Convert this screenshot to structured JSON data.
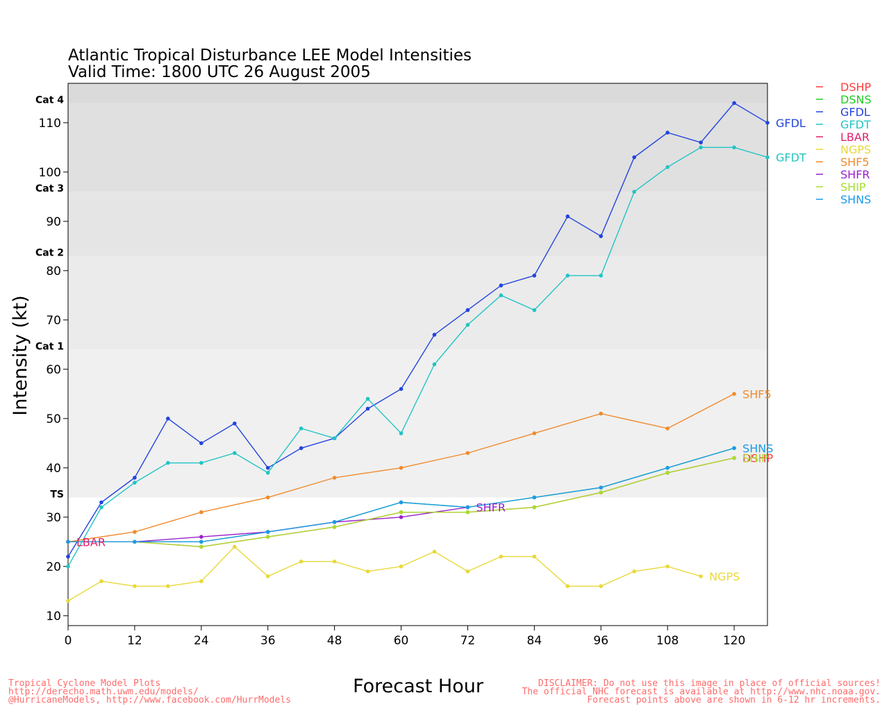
{
  "chart_data": {
    "type": "line",
    "title": "Atlantic Tropical Disturbance LEE Model Intensities",
    "subtitle": "Valid Time: 1800 UTC 26 August 2005",
    "xlabel": "Forecast Hour",
    "ylabel": "Intensity (kt)",
    "xlim": [
      0,
      126
    ],
    "ylim": [
      8,
      118
    ],
    "xticks": [
      0,
      12,
      24,
      36,
      48,
      60,
      72,
      84,
      96,
      108,
      120
    ],
    "yticks": [
      10,
      20,
      30,
      40,
      50,
      60,
      70,
      80,
      90,
      100,
      110
    ],
    "grid": false,
    "legend_position": "right",
    "bands": [
      {
        "label": "TS",
        "from": 34,
        "to": 64,
        "color": "#f0f0f0"
      },
      {
        "label": "Cat 1",
        "from": 64,
        "to": 83,
        "color": "#ebebeb"
      },
      {
        "label": "Cat 2",
        "from": 83,
        "to": 96,
        "color": "#e5e5e5"
      },
      {
        "label": "Cat 3",
        "from": 96,
        "to": 114,
        "color": "#e0e0e0"
      },
      {
        "label": "Cat 4",
        "from": 114,
        "to": 118,
        "color": "#dadada"
      }
    ],
    "series": [
      {
        "name": "DSHP",
        "color": "#ff3b3b",
        "end_label": "DSHP",
        "points": [
          [
            0,
            25
          ],
          [
            12,
            25
          ],
          [
            24,
            24
          ],
          [
            36,
            26
          ],
          [
            48,
            28
          ],
          [
            60,
            31
          ],
          [
            72,
            31
          ],
          [
            84,
            32
          ],
          [
            96,
            35
          ],
          [
            108,
            39
          ],
          [
            120,
            42
          ]
        ]
      },
      {
        "name": "DSNS",
        "color": "#22cc22",
        "end_label": "",
        "points": [
          [
            0,
            25
          ],
          [
            12,
            25
          ],
          [
            24,
            25
          ],
          [
            36,
            27
          ],
          [
            48,
            29
          ],
          [
            60,
            33
          ],
          [
            72,
            32
          ],
          [
            84,
            34
          ],
          [
            96,
            36
          ],
          [
            108,
            40
          ],
          [
            120,
            44
          ]
        ]
      },
      {
        "name": "GFDL",
        "color": "#2244dd",
        "end_label": "GFDL",
        "points": [
          [
            0,
            22
          ],
          [
            6,
            33
          ],
          [
            12,
            38
          ],
          [
            18,
            50
          ],
          [
            24,
            45
          ],
          [
            30,
            49
          ],
          [
            36,
            40
          ],
          [
            42,
            44
          ],
          [
            48,
            46
          ],
          [
            54,
            52
          ],
          [
            60,
            56
          ],
          [
            66,
            67
          ],
          [
            72,
            72
          ],
          [
            78,
            77
          ],
          [
            84,
            79
          ],
          [
            90,
            91
          ],
          [
            96,
            87
          ],
          [
            102,
            103
          ],
          [
            108,
            108
          ],
          [
            114,
            106
          ],
          [
            120,
            114
          ],
          [
            126,
            110
          ]
        ]
      },
      {
        "name": "GFDT",
        "color": "#22c4c4",
        "end_label": "GFDT",
        "points": [
          [
            0,
            20
          ],
          [
            6,
            32
          ],
          [
            12,
            37
          ],
          [
            18,
            41
          ],
          [
            24,
            41
          ],
          [
            30,
            43
          ],
          [
            36,
            39
          ],
          [
            42,
            48
          ],
          [
            48,
            46
          ],
          [
            54,
            54
          ],
          [
            60,
            47
          ],
          [
            66,
            61
          ],
          [
            72,
            69
          ],
          [
            78,
            75
          ],
          [
            84,
            72
          ],
          [
            90,
            79
          ],
          [
            96,
            79
          ],
          [
            102,
            96
          ],
          [
            108,
            101
          ],
          [
            114,
            105
          ],
          [
            120,
            105
          ],
          [
            126,
            103
          ]
        ]
      },
      {
        "name": "LBAR",
        "color": "#e0206e",
        "end_label": "LBAR",
        "points": [
          [
            0,
            25
          ]
        ]
      },
      {
        "name": "NGPS",
        "color": "#e8d93a",
        "end_label": "NGPS",
        "points": [
          [
            0,
            13
          ],
          [
            6,
            17
          ],
          [
            12,
            16
          ],
          [
            18,
            16
          ],
          [
            24,
            17
          ],
          [
            30,
            24
          ],
          [
            36,
            18
          ],
          [
            42,
            21
          ],
          [
            48,
            21
          ],
          [
            54,
            19
          ],
          [
            60,
            20
          ],
          [
            66,
            23
          ],
          [
            72,
            19
          ],
          [
            78,
            22
          ],
          [
            84,
            22
          ],
          [
            90,
            16
          ],
          [
            96,
            16
          ],
          [
            102,
            19
          ],
          [
            108,
            20
          ],
          [
            114,
            18
          ]
        ]
      },
      {
        "name": "SHF5",
        "color": "#f08a2c",
        "end_label": "SHF5",
        "points": [
          [
            0,
            25
          ],
          [
            12,
            27
          ],
          [
            24,
            31
          ],
          [
            36,
            34
          ],
          [
            48,
            38
          ],
          [
            60,
            40
          ],
          [
            72,
            43
          ],
          [
            84,
            47
          ],
          [
            96,
            51
          ],
          [
            108,
            48
          ],
          [
            120,
            55
          ]
        ]
      },
      {
        "name": "SHFR",
        "color": "#9a22c8",
        "end_label": "SHFR",
        "points": [
          [
            0,
            25
          ],
          [
            12,
            25
          ],
          [
            24,
            26
          ],
          [
            36,
            27
          ],
          [
            48,
            29
          ],
          [
            60,
            30
          ],
          [
            72,
            32
          ]
        ]
      },
      {
        "name": "SHIP",
        "color": "#a8dd30",
        "end_label": "SHIP",
        "points": [
          [
            0,
            25
          ],
          [
            12,
            25
          ],
          [
            24,
            24
          ],
          [
            36,
            26
          ],
          [
            48,
            28
          ],
          [
            60,
            31
          ],
          [
            72,
            31
          ],
          [
            84,
            32
          ],
          [
            96,
            35
          ],
          [
            108,
            39
          ],
          [
            120,
            42
          ]
        ]
      },
      {
        "name": "SHNS",
        "color": "#1e9ae8",
        "end_label": "SHNS",
        "points": [
          [
            0,
            25
          ],
          [
            12,
            25
          ],
          [
            24,
            25
          ],
          [
            36,
            27
          ],
          [
            48,
            29
          ],
          [
            60,
            33
          ],
          [
            72,
            32
          ],
          [
            84,
            34
          ],
          [
            96,
            36
          ],
          [
            108,
            40
          ],
          [
            120,
            44
          ]
        ]
      }
    ]
  },
  "footer": {
    "left_1": "Tropical Cyclone Model Plots",
    "left_2": "http://derecho.math.uwm.edu/models/",
    "left_3": "@HurricaneModels, http://www.facebook.com/HurrModels",
    "right_1": "DISCLAIMER: Do not use this image in place of official sources!",
    "right_2": "The official NHC forecast is available at http://www.nhc.noaa.gov.",
    "right_3": "Forecast points above are shown in 6-12 hr increments."
  }
}
